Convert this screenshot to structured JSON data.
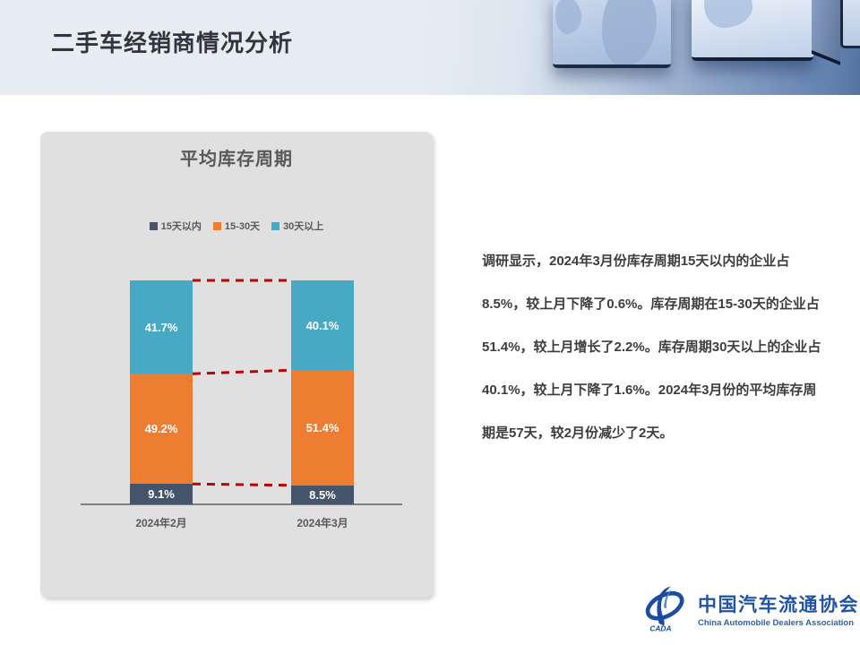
{
  "header": {
    "title": "二手车经销商情况分析"
  },
  "chart_data": {
    "type": "bar",
    "variant": "stacked-column",
    "title": "平均库存周期",
    "categories": [
      "2024年2月",
      "2024年3月"
    ],
    "series": [
      {
        "name": "15天以内",
        "color": "#44546A",
        "values": [
          9.1,
          8.5
        ]
      },
      {
        "name": "15-30天",
        "color": "#ED7D31",
        "values": [
          49.2,
          51.4
        ]
      },
      {
        "name": "30天以上",
        "color": "#47A9C4",
        "values": [
          41.7,
          40.1
        ]
      }
    ],
    "value_suffix": "%",
    "ylim": [
      0,
      100
    ],
    "grid": false,
    "legend_position": "top-center",
    "label_color": "#FFFFFF",
    "connector_line_color": "#C00000",
    "axis_line_color": "#7F7F7F"
  },
  "analysis": {
    "paragraph": "调研显示，2024年3月份库存周期15天以内的企业占8.5%，较上月下降了0.6%。库存周期在15-30天的企业占51.4%，较上月增长了2.2%。库存周期30天以上的企业占40.1%，较上月下降了1.6%。2024年3月份的平均库存周期是57天，较2月份减少了2天。"
  },
  "logo": {
    "name_cn": "中国汽车流通协会",
    "name_en": "China Automobile Dealers Association",
    "emblem_text": "CADA",
    "brand_color": "#2155A3"
  }
}
